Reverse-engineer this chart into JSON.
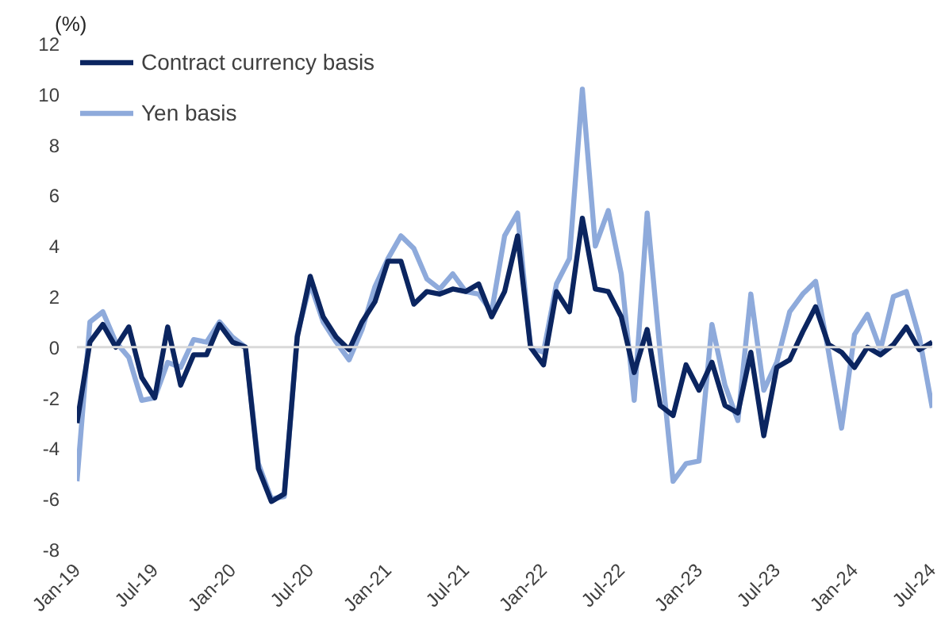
{
  "chart_data": {
    "type": "line",
    "ylabel": "(%)",
    "x": [
      "2019-01",
      "2019-02",
      "2019-03",
      "2019-04",
      "2019-05",
      "2019-06",
      "2019-07",
      "2019-08",
      "2019-09",
      "2019-10",
      "2019-11",
      "2019-12",
      "2020-01",
      "2020-02",
      "2020-03",
      "2020-04",
      "2020-05",
      "2020-06",
      "2020-07",
      "2020-08",
      "2020-09",
      "2020-10",
      "2020-11",
      "2020-12",
      "2021-01",
      "2021-02",
      "2021-03",
      "2021-04",
      "2021-05",
      "2021-06",
      "2021-07",
      "2021-08",
      "2021-09",
      "2021-10",
      "2021-11",
      "2021-12",
      "2022-01",
      "2022-02",
      "2022-03",
      "2022-04",
      "2022-05",
      "2022-06",
      "2022-07",
      "2022-08",
      "2022-09",
      "2022-10",
      "2022-11",
      "2022-12",
      "2023-01",
      "2023-02",
      "2023-03",
      "2023-04",
      "2023-05",
      "2023-06",
      "2023-07",
      "2023-08",
      "2023-09",
      "2023-10",
      "2023-11",
      "2023-12",
      "2024-01",
      "2024-02",
      "2024-03",
      "2024-04",
      "2024-05",
      "2024-06",
      "2024-07"
    ],
    "series": [
      {
        "name": "Contract currency basis",
        "color": "#0b2560",
        "values": [
          -3.0,
          0.2,
          0.9,
          0.0,
          0.8,
          -1.2,
          -2.0,
          0.8,
          -1.5,
          -0.3,
          -0.3,
          0.9,
          0.2,
          0.0,
          -4.8,
          -6.1,
          -5.8,
          0.4,
          2.8,
          1.2,
          0.4,
          -0.1,
          1.0,
          1.8,
          3.4,
          3.4,
          1.7,
          2.2,
          2.1,
          2.3,
          2.2,
          2.5,
          1.2,
          2.2,
          4.4,
          0.0,
          -0.7,
          2.2,
          1.4,
          5.1,
          2.3,
          2.2,
          1.2,
          -1.0,
          0.7,
          -2.3,
          -2.7,
          -0.7,
          -1.7,
          -0.6,
          -2.3,
          -2.6,
          -0.2,
          -3.5,
          -0.8,
          -0.5,
          0.6,
          1.6,
          0.1,
          -0.2,
          -0.8,
          0.0,
          -0.3,
          0.1,
          0.8,
          -0.1,
          0.2
        ]
      },
      {
        "name": "Yen basis",
        "color": "#8eaadb",
        "values": [
          -5.3,
          1.0,
          1.4,
          0.2,
          -0.4,
          -2.1,
          -2.0,
          -0.6,
          -0.8,
          0.3,
          0.2,
          1.0,
          0.4,
          0.0,
          -4.6,
          -6.0,
          -5.9,
          0.5,
          2.5,
          1.0,
          0.2,
          -0.5,
          0.7,
          2.4,
          3.5,
          4.4,
          3.9,
          2.7,
          2.3,
          2.9,
          2.2,
          2.1,
          1.4,
          4.4,
          5.3,
          0.0,
          -0.2,
          2.5,
          3.5,
          10.2,
          4.0,
          5.4,
          2.9,
          -2.1,
          5.3,
          -0.2,
          -5.3,
          -4.6,
          -4.5,
          0.9,
          -1.5,
          -2.9,
          2.1,
          -1.7,
          -0.6,
          1.4,
          2.1,
          2.6,
          -0.2,
          -3.2,
          0.5,
          1.3,
          -0.1,
          2.0,
          2.2,
          0.4,
          -2.4
        ]
      }
    ],
    "ylim": [
      -8,
      12
    ],
    "yticks": [
      -8,
      -6,
      -4,
      -2,
      0,
      2,
      4,
      6,
      8,
      10,
      12
    ],
    "xlim": [
      "2019-01",
      "2024-07"
    ],
    "xticks": [
      {
        "value": "2019-01",
        "label": "Jan-19"
      },
      {
        "value": "2019-07",
        "label": "Jul-19"
      },
      {
        "value": "2020-01",
        "label": "Jan-20"
      },
      {
        "value": "2020-07",
        "label": "Jul-20"
      },
      {
        "value": "2021-01",
        "label": "Jan-21"
      },
      {
        "value": "2021-07",
        "label": "Jul-21"
      },
      {
        "value": "2022-01",
        "label": "Jan-22"
      },
      {
        "value": "2022-07",
        "label": "Jul-22"
      },
      {
        "value": "2023-01",
        "label": "Jan-23"
      },
      {
        "value": "2023-07",
        "label": "Jul-23"
      },
      {
        "value": "2024-01",
        "label": "Jan-24"
      },
      {
        "value": "2024-07",
        "label": "Jul-24"
      }
    ],
    "ref_lines": [
      {
        "axis": "y",
        "value": 0,
        "color": "#d9d9d9"
      }
    ],
    "grid": false,
    "legend": "top left",
    "line_style": "solid",
    "marker": "none"
  }
}
